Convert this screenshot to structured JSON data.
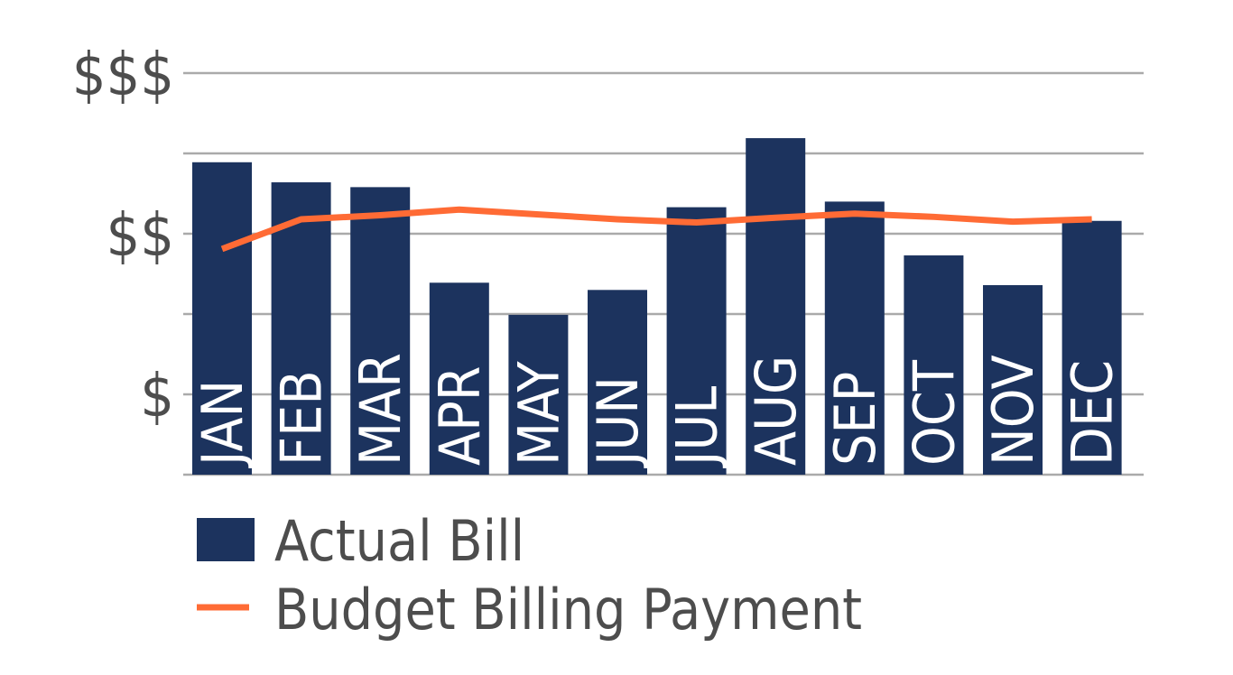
{
  "chart_data": {
    "type": "bar",
    "categories": [
      "JAN",
      "FEB",
      "MAR",
      "APR",
      "MAY",
      "JUN",
      "JUL",
      "AUG",
      "SEP",
      "OCT",
      "NOV",
      "DEC"
    ],
    "series": [
      {
        "name": "Actual Bill",
        "type": "bar",
        "color": "#1c335e",
        "values": [
          3.89,
          3.64,
          3.58,
          2.39,
          1.99,
          2.3,
          3.33,
          4.19,
          3.4,
          2.73,
          2.36,
          3.16
        ]
      },
      {
        "name": "Budget Billing Payment",
        "type": "line",
        "color": "#ff6b35",
        "values": [
          2.81,
          3.18,
          3.23,
          3.3,
          3.24,
          3.18,
          3.14,
          3.2,
          3.25,
          3.21,
          3.15,
          3.18
        ]
      }
    ],
    "y_ticks": [
      {
        "value": 1,
        "label": "$"
      },
      {
        "value": 3,
        "label": "$$"
      },
      {
        "value": 5,
        "label": "$$$"
      }
    ],
    "ylim": [
      0,
      5
    ],
    "grid": true,
    "legend": "bottom-left",
    "title": "",
    "xlabel": "",
    "ylabel": ""
  },
  "colors": {
    "bar": "#1c335e",
    "line": "#ff6b35",
    "grid": "#aaaaaa",
    "text": "#4d4d4d"
  }
}
